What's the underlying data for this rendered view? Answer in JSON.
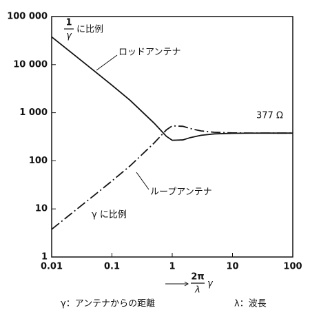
{
  "chart_data": {
    "type": "line",
    "log_x": true,
    "log_y": true,
    "x": [
      0.01,
      0.02,
      0.05,
      0.1,
      0.2,
      0.5,
      0.8,
      1,
      1.5,
      2,
      3,
      5,
      10,
      20,
      50,
      100
    ],
    "series": [
      {
        "name": "ロッドアンテナ",
        "color": "#111111",
        "line_style": "solid",
        "values": [
          37700,
          18850,
          7522,
          3733,
          1811,
          608,
          323,
          267,
          272,
          304,
          339,
          363,
          373,
          376,
          377,
          377
        ]
      },
      {
        "name": "ループアンテナ",
        "color": "#111111",
        "line_style": "dash-dot",
        "values": [
          3.77,
          7.54,
          18.9,
          38.1,
          78.5,
          234,
          440,
          533,
          522,
          468,
          419,
          392,
          381,
          378,
          377,
          377
        ]
      }
    ],
    "xlim": [
      0.01,
      100
    ],
    "ylim": [
      1,
      100000
    ],
    "xticks": [
      0.01,
      0.1,
      1,
      10,
      100
    ],
    "yticks": [
      1,
      10,
      100,
      {
        "value": 1000,
        "label": "1 000"
      },
      {
        "value": 10000,
        "label": "10 000"
      },
      {
        "value": 100000,
        "label": "100 000"
      }
    ],
    "top_left_note": {
      "numerator": "1",
      "denominator": "γ",
      "text": "に比例"
    },
    "annotations": [
      "γ に比例",
      "377 Ω"
    ],
    "x_label": {
      "numerator": "2π",
      "denominator": "λ",
      "variable": "γ"
    },
    "captions": [
      "γ：アンテナからの距離",
      "λ：波長"
    ]
  }
}
